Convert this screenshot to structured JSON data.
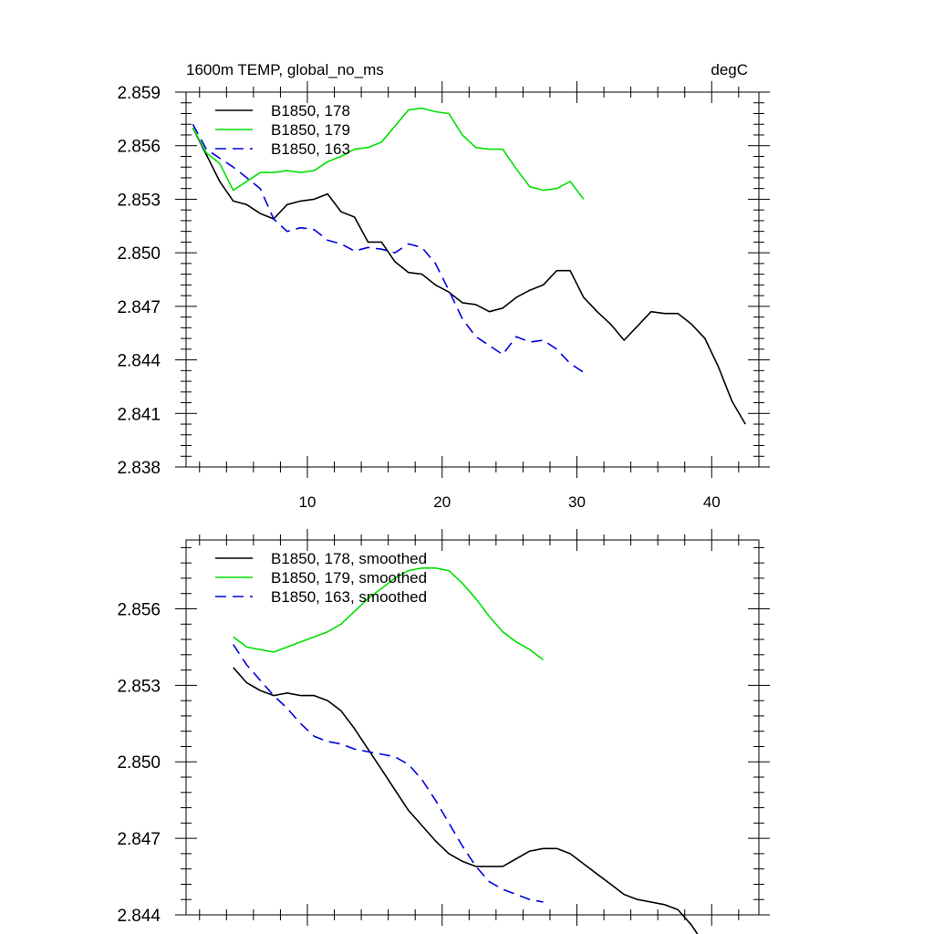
{
  "title_left": "1600m TEMP, global_no_ms",
  "title_right": "degC",
  "chart_data": [
    {
      "type": "line",
      "xlim": [
        1,
        43.5
      ],
      "ylim": [
        2.838,
        2.859
      ],
      "xticks": [
        10,
        20,
        30,
        40
      ],
      "yticks": [
        2.838,
        2.841,
        2.844,
        2.847,
        2.85,
        2.853,
        2.856,
        2.859
      ],
      "ytick_labels": [
        "2.838",
        "2.841",
        "2.844",
        "2.847",
        "2.850",
        "2.853",
        "2.856",
        "2.859"
      ],
      "xtick_labels": [
        "10",
        "20",
        "30",
        "40"
      ],
      "legend_position": "top-left",
      "series": [
        {
          "name": "B1850, 178",
          "color": "#000000",
          "dash": "solid",
          "x": [
            1.5,
            2.5,
            3.5,
            4.5,
            5.5,
            6.5,
            7.5,
            8.5,
            9.5,
            10.5,
            11.5,
            12.5,
            13.5,
            14.5,
            15.5,
            16.5,
            17.5,
            18.5,
            19.5,
            20.5,
            21.5,
            22.5,
            23.5,
            24.5,
            25.5,
            26.5,
            27.5,
            28.5,
            29.5,
            30.5,
            31.5,
            32.5,
            33.5,
            34.5,
            35.5,
            36.5,
            37.5,
            38.5,
            39.5,
            40.5,
            41.5,
            42.5
          ],
          "y": [
            2.857,
            2.8555,
            2.854,
            2.8529,
            2.8527,
            2.8522,
            2.8519,
            2.8527,
            2.8529,
            2.853,
            2.8533,
            2.8523,
            2.852,
            2.8506,
            2.8506,
            2.8495,
            2.8489,
            2.8488,
            2.8482,
            2.8478,
            2.8472,
            2.8471,
            2.8467,
            2.8469,
            2.8475,
            2.8479,
            2.8482,
            2.849,
            2.849,
            2.8475,
            2.8467,
            2.846,
            2.8451,
            2.8459,
            2.8467,
            2.8466,
            2.8466,
            2.846,
            2.8452,
            2.8436,
            2.8417,
            2.8404
          ]
        },
        {
          "name": "B1850, 179",
          "color": "#00e000",
          "dash": "solid",
          "x": [
            1.5,
            2.5,
            3.5,
            4.5,
            5.5,
            6.5,
            7.5,
            8.5,
            9.5,
            10.5,
            11.5,
            12.5,
            13.5,
            14.5,
            15.5,
            16.5,
            17.5,
            18.5,
            19.5,
            20.5,
            21.5,
            22.5,
            23.5,
            24.5,
            25.5,
            26.5,
            27.5,
            28.5,
            29.5,
            30.5
          ],
          "y": [
            2.857,
            2.8556,
            2.855,
            2.8535,
            2.854,
            2.8545,
            2.8545,
            2.8546,
            2.8545,
            2.8546,
            2.8551,
            2.8554,
            2.8558,
            2.8559,
            2.8562,
            2.8571,
            2.858,
            2.8581,
            2.8579,
            2.8578,
            2.8566,
            2.8559,
            2.8558,
            2.8558,
            2.8547,
            2.8537,
            2.8535,
            2.8536,
            2.854,
            2.853
          ]
        },
        {
          "name": "B1850, 163",
          "color": "#0000e0",
          "dash": "dashed",
          "x": [
            1.5,
            2.5,
            3.5,
            4.5,
            5.5,
            6.5,
            7.5,
            8.5,
            9.5,
            10.5,
            11.5,
            12.5,
            13.5,
            14.5,
            15.5,
            16.5,
            17.5,
            18.5,
            19.5,
            20.5,
            21.5,
            22.5,
            23.5,
            24.5,
            25.5,
            26.5,
            27.5,
            28.5,
            29.5,
            30.5
          ],
          "y": [
            2.8572,
            2.8558,
            2.8553,
            2.8548,
            2.8542,
            2.8536,
            2.8519,
            2.8512,
            2.8514,
            2.8513,
            2.8507,
            2.8505,
            2.8501,
            2.8503,
            2.8502,
            2.85,
            2.8505,
            2.8503,
            2.8494,
            2.8479,
            2.8463,
            2.8453,
            2.8448,
            2.8443,
            2.8453,
            2.845,
            2.8451,
            2.8446,
            2.8438,
            2.8433
          ]
        }
      ]
    },
    {
      "type": "line",
      "xlim": [
        1,
        43.5
      ],
      "ylim": [
        2.844,
        2.8587
      ],
      "xticks": [
        10,
        20,
        30,
        40
      ],
      "yticks": [
        2.844,
        2.847,
        2.85,
        2.853,
        2.856
      ],
      "ytick_labels": [
        "2.844",
        "2.847",
        "2.850",
        "2.853",
        "2.856"
      ],
      "legend_position": "top-left",
      "series": [
        {
          "name": "B1850, 178, smoothed",
          "color": "#000000",
          "dash": "solid",
          "x": [
            4.5,
            5.5,
            6.5,
            7.5,
            8.5,
            9.5,
            10.5,
            11.5,
            12.5,
            13.5,
            14.5,
            15.5,
            16.5,
            17.5,
            18.5,
            19.5,
            20.5,
            21.5,
            22.5,
            23.5,
            24.5,
            25.5,
            26.5,
            27.5,
            28.5,
            29.5,
            30.5,
            31.5,
            32.5,
            33.5,
            34.5,
            35.5,
            36.5,
            37.5,
            38.5,
            39.5
          ],
          "y": [
            2.8537,
            2.8531,
            2.8528,
            2.8526,
            2.8527,
            2.8526,
            2.8526,
            2.8524,
            2.852,
            2.8513,
            2.8505,
            2.8497,
            2.8489,
            2.8481,
            2.8475,
            2.8469,
            2.8464,
            2.8461,
            2.8459,
            2.8459,
            2.8459,
            2.8462,
            2.8465,
            2.8466,
            2.8466,
            2.8464,
            2.846,
            2.8456,
            2.8452,
            2.8448,
            2.8446,
            2.8445,
            2.8444,
            2.8442,
            2.8436,
            2.8428
          ]
        },
        {
          "name": "B1850, 179, smoothed",
          "color": "#00e000",
          "dash": "solid",
          "x": [
            4.5,
            5.5,
            6.5,
            7.5,
            8.5,
            9.5,
            10.5,
            11.5,
            12.5,
            13.5,
            14.5,
            15.5,
            16.5,
            17.5,
            18.5,
            19.5,
            20.5,
            21.5,
            22.5,
            23.5,
            24.5,
            25.5,
            26.5,
            27.5
          ],
          "y": [
            2.8549,
            2.8545,
            2.8544,
            2.8543,
            2.8545,
            2.8547,
            2.8549,
            2.8551,
            2.8554,
            2.8559,
            2.8564,
            2.8568,
            2.8572,
            2.8575,
            2.8576,
            2.8576,
            2.8575,
            2.857,
            2.8564,
            2.8557,
            2.8551,
            2.8547,
            2.8544,
            2.854
          ]
        },
        {
          "name": "B1850, 163, smoothed",
          "color": "#0000e0",
          "dash": "dashed",
          "x": [
            4.5,
            5.5,
            6.5,
            7.5,
            8.5,
            9.5,
            10.5,
            11.5,
            12.5,
            13.5,
            14.5,
            15.5,
            16.5,
            17.5,
            18.5,
            19.5,
            20.5,
            21.5,
            22.5,
            23.5,
            24.5,
            25.5,
            26.5,
            27.5
          ],
          "y": [
            2.8546,
            2.8538,
            2.8532,
            2.8526,
            2.8521,
            2.8515,
            2.851,
            2.8508,
            2.8507,
            2.8505,
            2.8504,
            2.8503,
            2.8502,
            2.8499,
            2.8493,
            2.8485,
            2.8476,
            2.8467,
            2.8459,
            2.8453,
            2.845,
            2.8448,
            2.8446,
            2.8445
          ]
        }
      ]
    }
  ]
}
